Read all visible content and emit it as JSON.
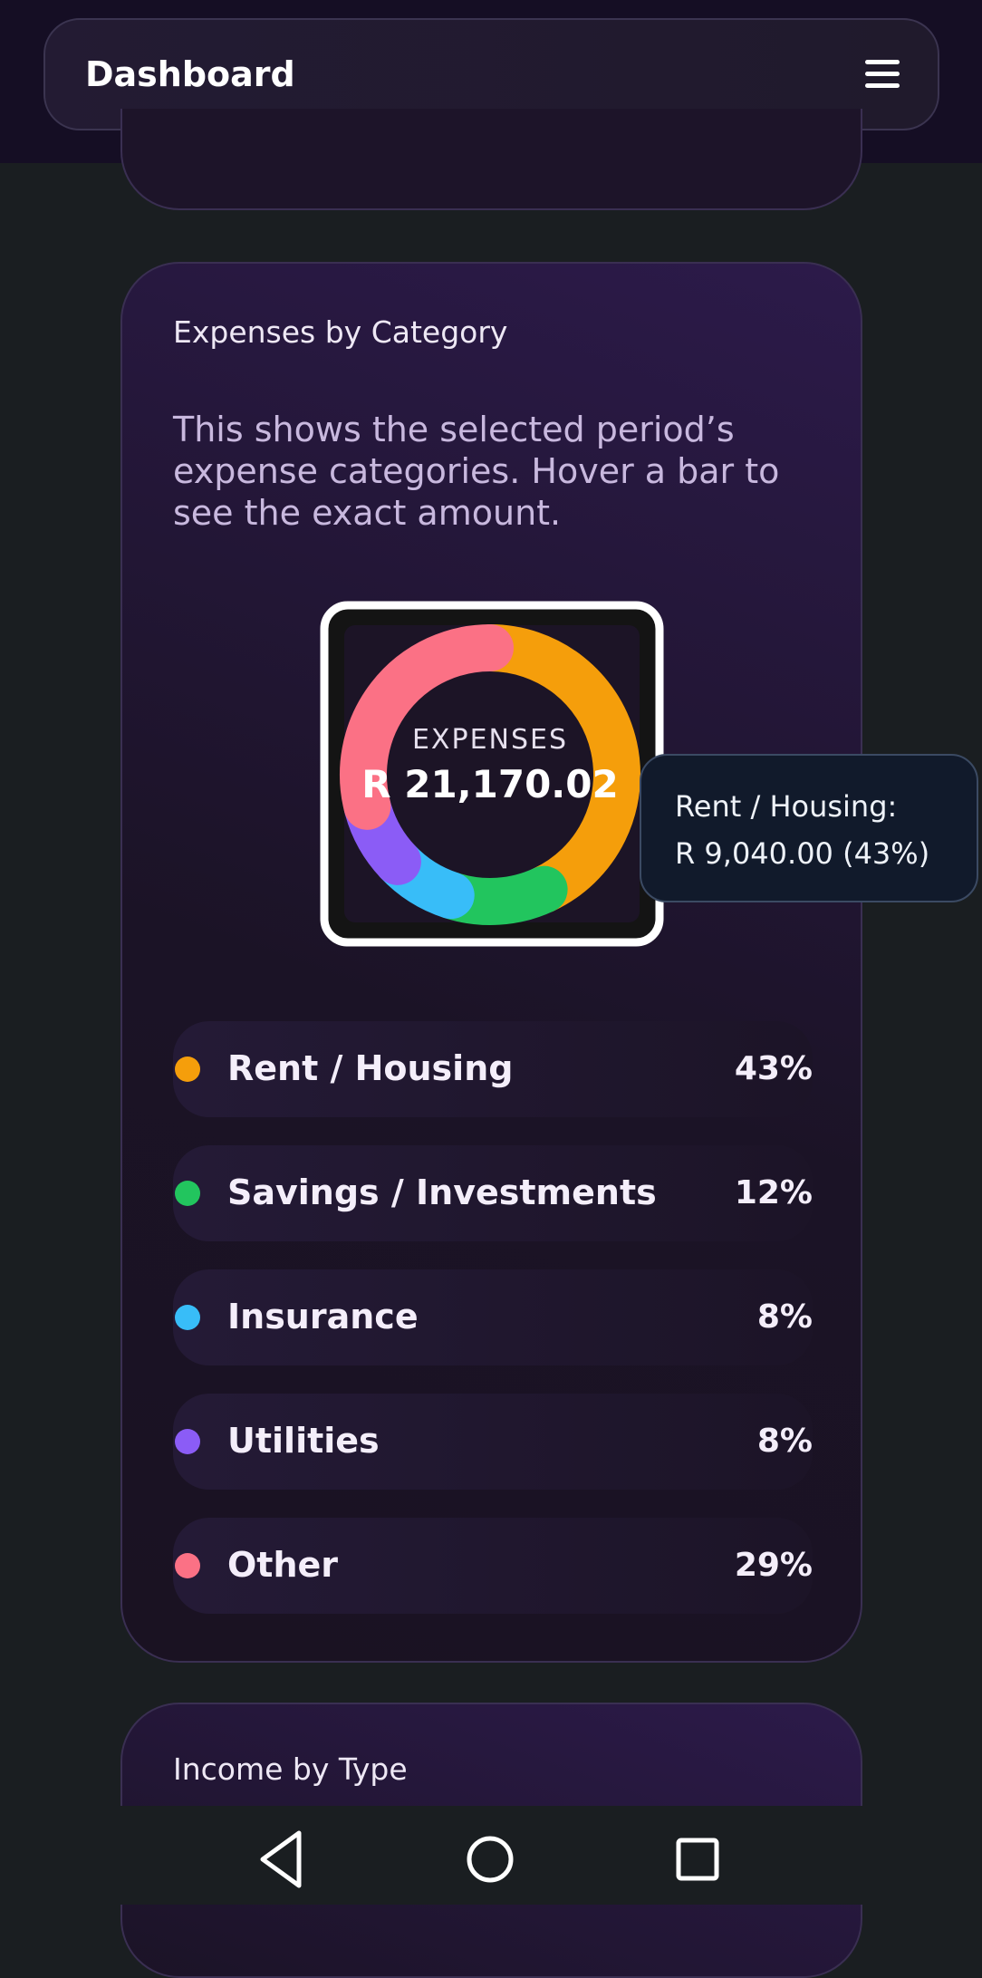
{
  "header": {
    "title": "Dashboard"
  },
  "card": {
    "title": "Expenses by Category",
    "description": "This shows the selected period’s expense categories. Hover a bar to see the exact amount."
  },
  "chart_data": {
    "type": "donut",
    "center_label": "EXPENSES",
    "center_value": "R 21,170.02",
    "tooltip": {
      "title": "Rent / Housing:",
      "text": "R 9,040.00 (43%)"
    },
    "categories": [
      "Rent / Housing",
      "Savings / Investments",
      "Insurance",
      "Utilities",
      "Other"
    ],
    "values": [
      43,
      12,
      8,
      8,
      29
    ],
    "value_labels": [
      "43%",
      "12%",
      "8%",
      "8%",
      "29%"
    ],
    "colors": [
      "#f59e0b",
      "#22c55e",
      "#38bdf8",
      "#8b5cf6",
      "#fb7185"
    ]
  },
  "next_card": {
    "title": "Income by Type"
  }
}
